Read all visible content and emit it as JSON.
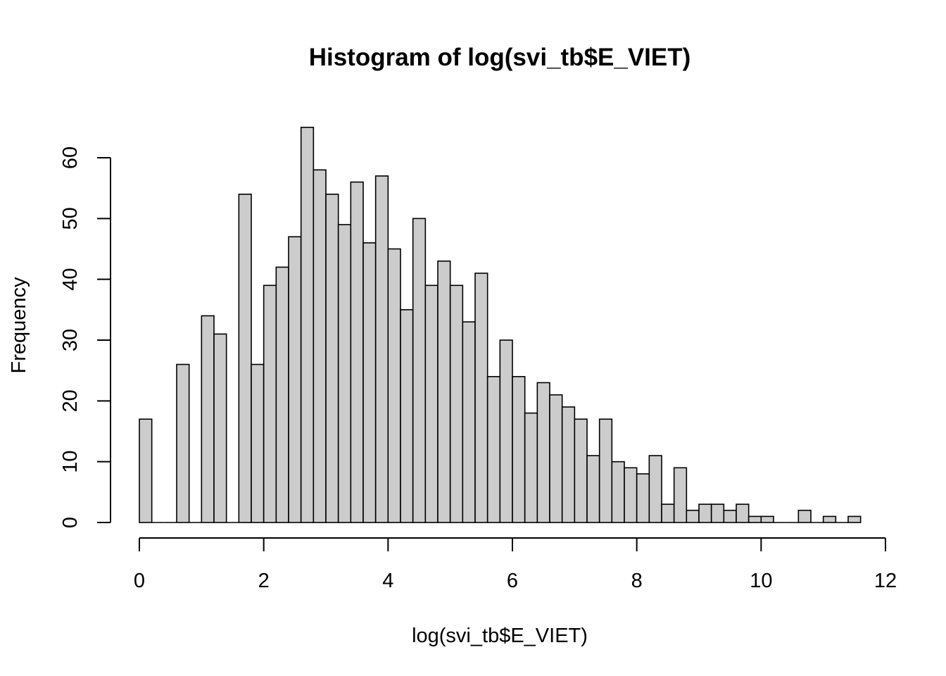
{
  "chart_data": {
    "type": "bar",
    "title": "Histogram of log(svi_tb$E_VIET)",
    "xlabel": "log(svi_tb$E_VIET)",
    "ylabel": "Frequency",
    "xlim": [
      0,
      12
    ],
    "ylim": [
      0,
      65
    ],
    "bin_width": 0.2,
    "bin_start": 0,
    "x_ticks": [
      "0",
      "2",
      "4",
      "6",
      "8",
      "10",
      "12"
    ],
    "y_ticks": [
      "0",
      "10",
      "20",
      "30",
      "40",
      "50",
      "60"
    ],
    "bar_fill": "#cccccc",
    "bar_stroke": "#000000",
    "grid": false,
    "values": [
      17,
      0,
      0,
      26,
      0,
      34,
      31,
      0,
      54,
      26,
      39,
      42,
      47,
      65,
      58,
      54,
      49,
      56,
      46,
      57,
      45,
      35,
      50,
      39,
      43,
      39,
      33,
      41,
      24,
      30,
      24,
      18,
      23,
      21,
      19,
      17,
      11,
      17,
      10,
      9,
      8,
      11,
      3,
      9,
      2,
      3,
      3,
      2,
      3,
      1,
      1,
      0,
      0,
      2,
      0,
      1,
      0,
      1
    ]
  }
}
